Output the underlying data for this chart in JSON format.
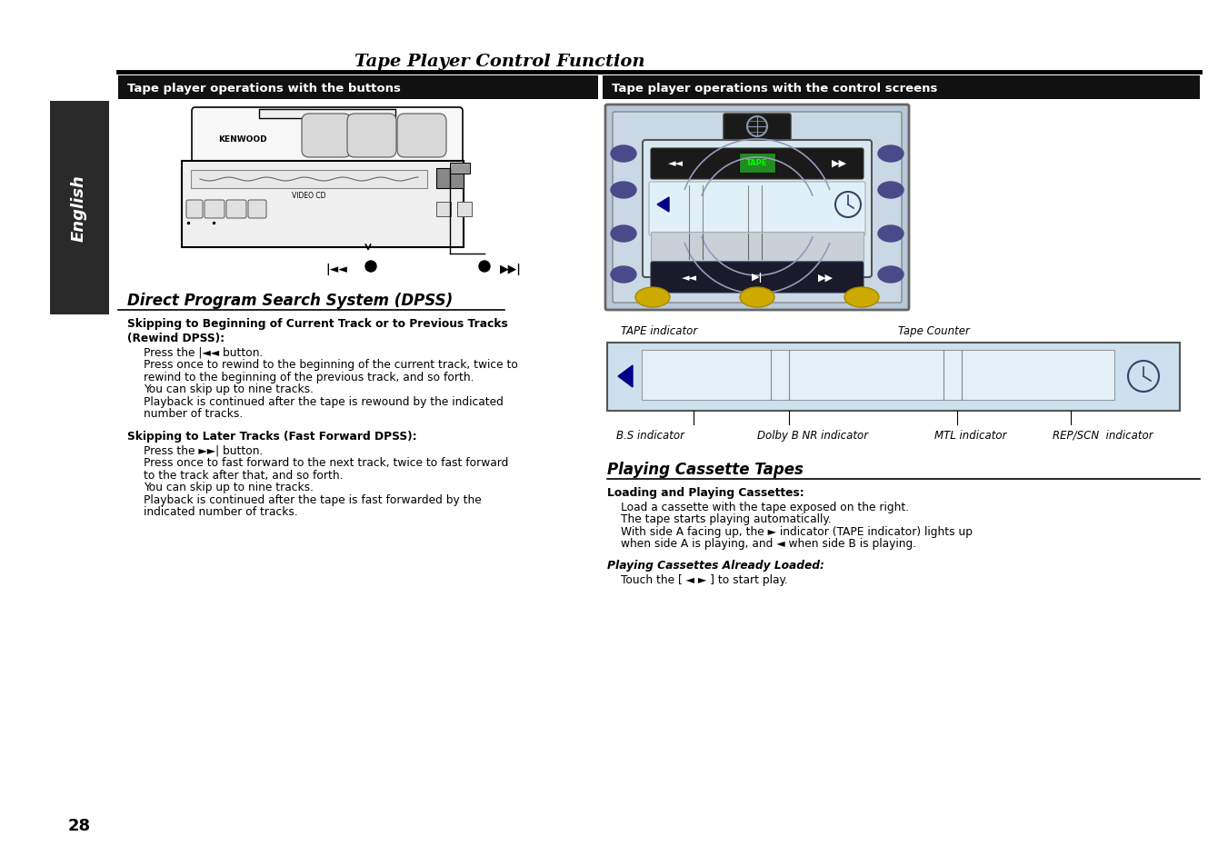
{
  "bg_color": "#ffffff",
  "title": "Tape Player Control Function",
  "left_header": "Tape player operations with the buttons",
  "right_header": "Tape player operations with the control screens",
  "dpss_title": "Direct Program Search System (DPSS)",
  "dpss_sub1": "Skipping to Beginning of Current Track or to Previous Tracks\n(Rewind DPSS):",
  "dpss_text1_lines": [
    "Press the |◄◄ button.",
    "Press once to rewind to the beginning of the current track, twice to",
    "rewind to the beginning of the previous track, and so forth.",
    "You can skip up to nine tracks.",
    "Playback is continued after the tape is rewound by the indicated",
    "number of tracks."
  ],
  "dpss_sub2": "Skipping to Later Tracks (Fast Forward DPSS):",
  "dpss_text2_lines": [
    "Press the ►►| button.",
    "Press once to fast forward to the next track, twice to fast forward",
    "to the track after that, and so forth.",
    "You can skip up to nine tracks.",
    "Playback is continued after the tape is fast forwarded by the",
    "indicated number of tracks."
  ],
  "playing_title": "Playing Cassette Tapes",
  "loading_sub": "Loading and Playing Cassettes:",
  "loading_text_lines": [
    "Load a cassette with the tape exposed on the right.",
    "The tape starts playing automatically.",
    "With side A facing up, the ► indicator (TAPE indicator) lights up",
    "when side A is playing, and ◄ when side B is playing."
  ],
  "playing_loaded_sub": "Playing Cassettes Already Loaded:",
  "playing_loaded_text": "Touch the [ ◄ ► ] to start play.",
  "page_number": "28",
  "tape_indicator_label": "TAPE indicator",
  "tape_counter_label": "Tape Counter",
  "bs_indicator": "B.S indicator",
  "dolby_indicator": "Dolby B NR indicator",
  "mtl_indicator": "MTL indicator",
  "repscn_indicator": "REP/SCN  indicator",
  "header_bg": "#111111",
  "header_text_color": "#ffffff",
  "sidebar_bg": "#2a2a2a",
  "sidebar_text_color": "#ffffff"
}
